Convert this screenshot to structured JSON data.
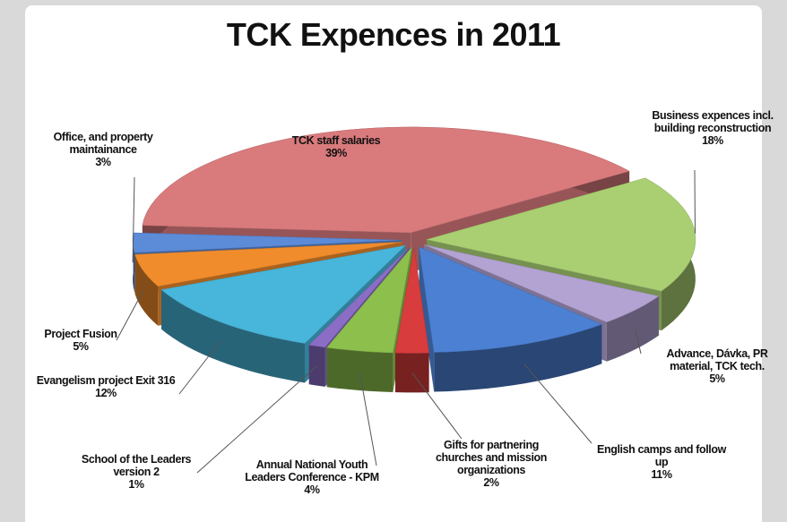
{
  "chart_data": {
    "type": "pie",
    "title": "TCK Expences in 2011",
    "categories": [
      "TCK staff salaries",
      "Business expences incl. building reconstruction",
      "Advance, Dávka, PR material, TCK tech.",
      "English camps and follow up",
      "Gifts for partnering churches and mission organizations",
      "Annual National Youth Leaders Conference - KPM",
      "School of the Leaders version 2",
      "Evangelism project Exit 316",
      "Project Fusion",
      "Office, and property maintainance"
    ],
    "values": [
      39,
      18,
      5,
      11,
      2,
      4,
      1,
      12,
      5,
      3
    ],
    "value_labels": [
      "39%",
      "18%",
      "5%",
      "11%",
      "2%",
      "4%",
      "1%",
      "12%",
      "5%",
      "3%"
    ],
    "colors": [
      "#d97a7c",
      "#a9cf72",
      "#b3a3d3",
      "#4b80d2",
      "#d83c3c",
      "#8cbf4c",
      "#8b6dc6",
      "#48b5da",
      "#f08c2c",
      "#5c8bd8"
    ]
  }
}
